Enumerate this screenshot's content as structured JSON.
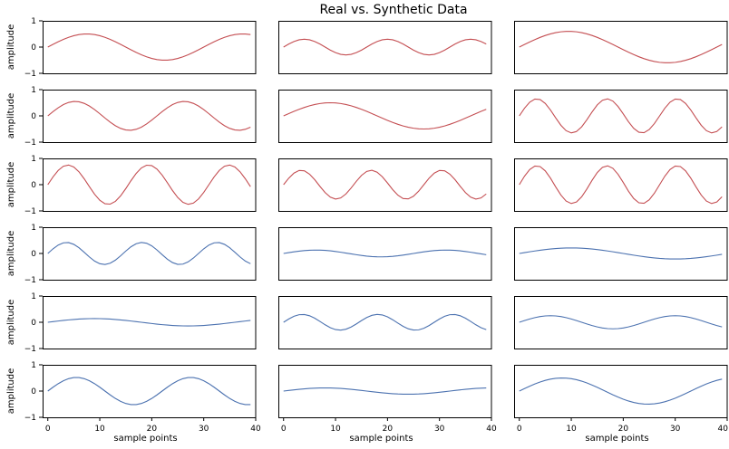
{
  "chart_data": {
    "type": "line",
    "title": "Real vs. Synthetic Data",
    "layout": {
      "rows": 6,
      "cols": 3
    },
    "xlabel": "sample points",
    "ylabel": "amplitude",
    "xlim": [
      -1,
      40
    ],
    "ylim": [
      -1,
      1
    ],
    "xticks": [
      "0",
      "10",
      "20",
      "30",
      "40"
    ],
    "yticks": [
      "1",
      "0",
      "−1"
    ],
    "grid": false,
    "colors": {
      "real": "#c44e52",
      "synthetic": "#4c72b0"
    },
    "n_points": 40,
    "panels": [
      {
        "group": "real",
        "amplitude": 0.5,
        "period": 30,
        "phase": 0
      },
      {
        "group": "real",
        "amplitude": 0.3,
        "period": 16,
        "phase": 0
      },
      {
        "group": "real",
        "amplitude": 0.6,
        "period": 38,
        "phase": 0
      },
      {
        "group": "real",
        "amplitude": 0.55,
        "period": 21,
        "phase": 0
      },
      {
        "group": "real",
        "amplitude": 0.5,
        "period": 36,
        "phase": 0
      },
      {
        "group": "real",
        "amplitude": 0.65,
        "period": 13.5,
        "phase": 0
      },
      {
        "group": "real",
        "amplitude": 0.75,
        "period": 15.5,
        "phase": 0
      },
      {
        "group": "real",
        "amplitude": 0.55,
        "period": 13.5,
        "phase": 0
      },
      {
        "group": "real",
        "amplitude": 0.72,
        "period": 13.5,
        "phase": 0
      },
      {
        "group": "synthetic",
        "amplitude": 0.42,
        "period": 14.5,
        "phase": 0
      },
      {
        "group": "synthetic",
        "amplitude": 0.13,
        "period": 25,
        "phase": 0
      },
      {
        "group": "synthetic",
        "amplitude": 0.21,
        "period": 40,
        "phase": 0
      },
      {
        "group": "synthetic",
        "amplitude": 0.14,
        "period": 36,
        "phase": 0
      },
      {
        "group": "synthetic",
        "amplitude": 0.3,
        "period": 14.5,
        "phase": 0
      },
      {
        "group": "synthetic",
        "amplitude": 0.25,
        "period": 24,
        "phase": 0
      },
      {
        "group": "synthetic",
        "amplitude": 0.52,
        "period": 22,
        "phase": 0
      },
      {
        "group": "synthetic",
        "amplitude": 0.12,
        "period": 32,
        "phase": 0
      },
      {
        "group": "synthetic",
        "amplitude": 0.5,
        "period": 33,
        "phase": 0
      }
    ]
  }
}
